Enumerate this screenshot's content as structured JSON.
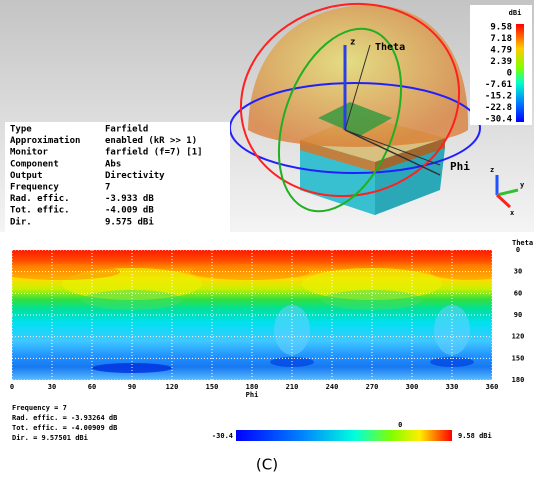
{
  "view3d": {
    "z_axis": "z",
    "theta": "Theta",
    "phi": "Phi",
    "triad": [
      "z",
      "y",
      "x"
    ]
  },
  "colorbar": {
    "unit": "dBi",
    "ticks": [
      9.58,
      7.18,
      4.79,
      2.39,
      0,
      -7.61,
      -15.2,
      -22.8,
      -30.4
    ]
  },
  "info": [
    [
      "Type",
      "Farfield"
    ],
    [
      "Approximation",
      "enabled (kR >> 1)"
    ],
    [
      "Monitor",
      "farfield (f=7) [1]"
    ],
    [
      "Component",
      "Abs"
    ],
    [
      "Output",
      "Directivity"
    ],
    [
      "Frequency",
      "7"
    ],
    [
      "Rad. effic.",
      "-3.933 dB"
    ],
    [
      "Tot. effic.",
      "-4.009 dB"
    ],
    [
      "Dir.",
      " 9.575 dBi"
    ]
  ],
  "plot": {
    "y_label": "Theta",
    "x_label": "Phi",
    "xlim": [
      0,
      360
    ],
    "xticks": [
      0,
      30,
      60,
      90,
      120,
      150,
      180,
      210,
      240,
      270,
      300,
      330,
      360
    ],
    "ylim": [
      0,
      180
    ],
    "yticks": [
      0,
      30,
      60,
      90,
      120,
      150,
      180
    ]
  },
  "summary": [
    "Frequency = 7",
    "Rad. effic. = -3.93264 dB",
    "Tot. effic. = -4.00909 dB",
    "Dir.     = 9.57501 dBi"
  ],
  "scale": {
    "min": -30.4,
    "zero": 0,
    "max": {
      "value": 9.58,
      "label": "9.58 dBi"
    }
  },
  "caption": "(C)"
}
